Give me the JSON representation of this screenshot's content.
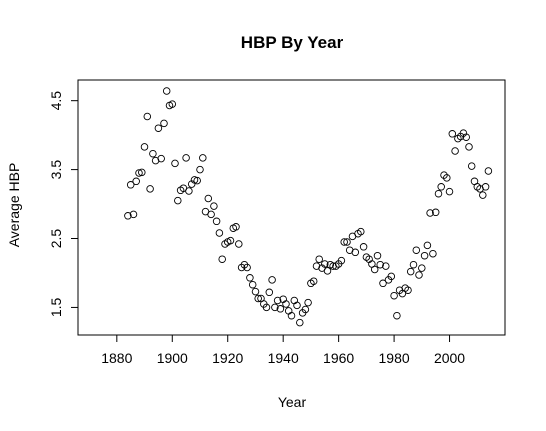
{
  "chart_data": {
    "type": "scatter",
    "title": "HBP By Year",
    "xlabel": "Year",
    "ylabel": "Average HBP",
    "xlim": [
      1866,
      2020
    ],
    "ylim": [
      1.1,
      4.8
    ],
    "xticks": [
      1880,
      1900,
      1920,
      1940,
      1960,
      1980,
      2000
    ],
    "yticks": [
      1.5,
      2.5,
      3.5,
      4.5
    ],
    "xtick_labels": [
      "1880",
      "1900",
      "1920",
      "1940",
      "1960",
      "1980",
      "2000"
    ],
    "ytick_labels": [
      "1.5",
      "2.5",
      "3.5",
      "4.5"
    ],
    "grid": false,
    "marker": "open-circle",
    "series": [
      {
        "points": [
          [
            1884,
            2.83
          ],
          [
            1885,
            3.28
          ],
          [
            1886,
            2.85
          ],
          [
            1887,
            3.33
          ],
          [
            1888,
            3.45
          ],
          [
            1889,
            3.46
          ],
          [
            1890,
            3.83
          ],
          [
            1891,
            4.27
          ],
          [
            1892,
            3.22
          ],
          [
            1893,
            3.73
          ],
          [
            1894,
            3.63
          ],
          [
            1895,
            4.1
          ],
          [
            1896,
            3.66
          ],
          [
            1897,
            4.17
          ],
          [
            1898,
            4.64
          ],
          [
            1899,
            4.43
          ],
          [
            1900,
            4.45
          ],
          [
            1901,
            3.59
          ],
          [
            1902,
            3.05
          ],
          [
            1903,
            3.2
          ],
          [
            1904,
            3.23
          ],
          [
            1905,
            3.67
          ],
          [
            1906,
            3.19
          ],
          [
            1907,
            3.29
          ],
          [
            1908,
            3.35
          ],
          [
            1909,
            3.34
          ],
          [
            1910,
            3.5
          ],
          [
            1911,
            3.67
          ],
          [
            1912,
            2.89
          ],
          [
            1913,
            3.08
          ],
          [
            1914,
            2.85
          ],
          [
            1915,
            2.97
          ],
          [
            1916,
            2.75
          ],
          [
            1917,
            2.58
          ],
          [
            1918,
            2.2
          ],
          [
            1919,
            2.42
          ],
          [
            1920,
            2.45
          ],
          [
            1921,
            2.47
          ],
          [
            1922,
            2.65
          ],
          [
            1923,
            2.67
          ],
          [
            1924,
            2.42
          ],
          [
            1925,
            2.08
          ],
          [
            1926,
            2.12
          ],
          [
            1927,
            2.08
          ],
          [
            1928,
            1.93
          ],
          [
            1929,
            1.83
          ],
          [
            1930,
            1.73
          ],
          [
            1931,
            1.63
          ],
          [
            1932,
            1.63
          ],
          [
            1933,
            1.55
          ],
          [
            1934,
            1.5
          ],
          [
            1935,
            1.72
          ],
          [
            1936,
            1.9
          ],
          [
            1937,
            1.5
          ],
          [
            1938,
            1.6
          ],
          [
            1939,
            1.48
          ],
          [
            1940,
            1.62
          ],
          [
            1941,
            1.55
          ],
          [
            1942,
            1.45
          ],
          [
            1943,
            1.38
          ],
          [
            1944,
            1.6
          ],
          [
            1945,
            1.53
          ],
          [
            1946,
            1.28
          ],
          [
            1947,
            1.42
          ],
          [
            1948,
            1.47
          ],
          [
            1949,
            1.57
          ],
          [
            1950,
            1.85
          ],
          [
            1951,
            1.88
          ],
          [
            1952,
            2.1
          ],
          [
            1953,
            2.2
          ],
          [
            1954,
            2.07
          ],
          [
            1955,
            2.13
          ],
          [
            1956,
            2.03
          ],
          [
            1957,
            2.12
          ],
          [
            1958,
            2.1
          ],
          [
            1959,
            2.1
          ],
          [
            1960,
            2.13
          ],
          [
            1961,
            2.18
          ],
          [
            1962,
            2.45
          ],
          [
            1963,
            2.45
          ],
          [
            1964,
            2.33
          ],
          [
            1965,
            2.53
          ],
          [
            1966,
            2.3
          ],
          [
            1967,
            2.57
          ],
          [
            1968,
            2.6
          ],
          [
            1969,
            2.38
          ],
          [
            1970,
            2.23
          ],
          [
            1971,
            2.2
          ],
          [
            1972,
            2.13
          ],
          [
            1973,
            2.05
          ],
          [
            1974,
            2.25
          ],
          [
            1975,
            2.12
          ],
          [
            1976,
            1.85
          ],
          [
            1977,
            2.1
          ],
          [
            1978,
            1.9
          ],
          [
            1979,
            1.95
          ],
          [
            1980,
            1.67
          ],
          [
            1981,
            1.38
          ],
          [
            1982,
            1.75
          ],
          [
            1983,
            1.7
          ],
          [
            1984,
            1.78
          ],
          [
            1985,
            1.75
          ],
          [
            1986,
            2.02
          ],
          [
            1987,
            2.12
          ],
          [
            1988,
            2.33
          ],
          [
            1989,
            1.97
          ],
          [
            1990,
            2.07
          ],
          [
            1991,
            2.25
          ],
          [
            1992,
            2.4
          ],
          [
            1993,
            2.87
          ],
          [
            1994,
            2.28
          ],
          [
            1995,
            2.88
          ],
          [
            1996,
            3.15
          ],
          [
            1997,
            3.25
          ],
          [
            1998,
            3.42
          ],
          [
            1999,
            3.38
          ],
          [
            2000,
            3.18
          ],
          [
            2001,
            4.02
          ],
          [
            2002,
            3.77
          ],
          [
            2003,
            3.95
          ],
          [
            2004,
            3.98
          ],
          [
            2005,
            4.03
          ],
          [
            2006,
            3.97
          ],
          [
            2007,
            3.83
          ],
          [
            2008,
            3.55
          ],
          [
            2009,
            3.33
          ],
          [
            2010,
            3.25
          ],
          [
            2011,
            3.22
          ],
          [
            2012,
            3.13
          ],
          [
            2013,
            3.25
          ],
          [
            2014,
            3.48
          ]
        ]
      }
    ]
  }
}
